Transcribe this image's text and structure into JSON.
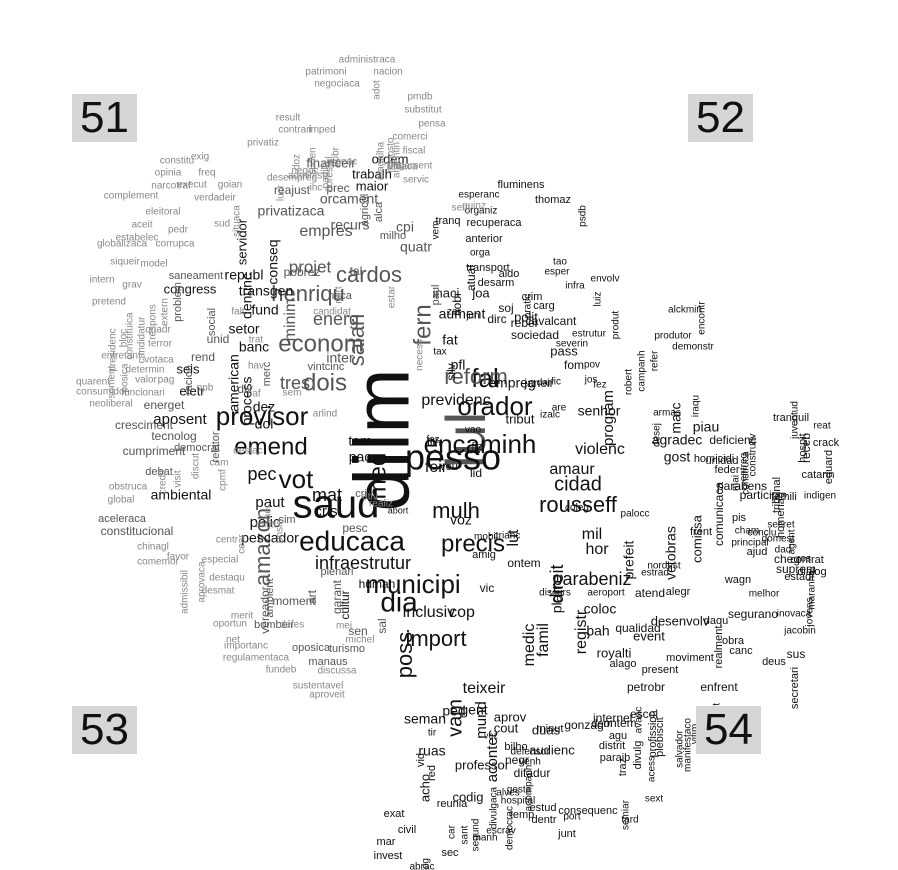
{
  "quadrant_labels": [
    "51",
    "52",
    "53",
    "54"
  ],
  "palette": {
    "dark": "#111111",
    "mid": "#555555",
    "light": "#888888",
    "lighter": "#a8a8a8",
    "badge": "#d6d6d6"
  },
  "words": {
    "big": [
      "dilm",
      "lul",
      "saud",
      "pesso",
      "provisor",
      "educaca",
      "orador",
      "encaminh",
      "fal",
      "municipi",
      "rousseff",
      "precis",
      "emend",
      "mulh",
      "dia",
      "med",
      "vot",
      "econom",
      "dois",
      "henriqu",
      "cardos",
      "reform",
      "cidad",
      "fern",
      "salari",
      "amazon",
      "infraestrutur",
      "poss",
      "import",
      "direit",
      "lut",
      "parabeniz"
    ],
    "medium": [
      "energ",
      "tres",
      "projet",
      "inter",
      "previdenc",
      "empres",
      "minim",
      "privatizaca",
      "orcament",
      "recurs",
      "cpi",
      "quatr",
      "pec",
      "mat",
      "cris",
      "tem",
      "pac",
      "feir",
      "voz",
      "amaur",
      "mil",
      "hor",
      "program",
      "violenc",
      "senhor",
      "agradec",
      "gost",
      "marc",
      "coloc",
      "bah",
      "event",
      "royalti",
      "medic",
      "famil",
      "registr",
      "vam",
      "teixeir",
      "ped",
      "gent",
      "cop",
      "inclusiv",
      "plan",
      "prefeit",
      "vetobras",
      "piau",
      "ambiental",
      "polic",
      "paut",
      "dez",
      "dol",
      "aposent",
      "pescador",
      "empreg",
      "tribut",
      "aument",
      "inaci",
      "transgen",
      "fund",
      "setor",
      "republ",
      "congress",
      "seis",
      "eletr",
      "process",
      "american",
      "banc",
      "conseq",
      "denunc",
      "servidor",
      "maior",
      "trabalh",
      "ordem",
      "acontec",
      "cout",
      "duas",
      "mund",
      "aprov",
      "audienc",
      "codig",
      "professor",
      "ruas",
      "seman",
      "acho",
      "human",
      "cultur",
      "desenvolv",
      "comissa",
      "comunicaca",
      "atend",
      "ontem",
      "internet",
      "escol",
      "petrobr",
      "qualidad",
      "amig",
      "bah"
    ],
    "small": [
      "patrimoni",
      "nacion",
      "administraca",
      "pmdb",
      "negociaca",
      "substitut",
      "result",
      "pensa",
      "contrari",
      "imped",
      "comerci",
      "privatiz",
      "fiscal",
      "pagament",
      "servic",
      "urgenc",
      "financeir",
      "redaca",
      "reajust",
      "prec",
      "constitu",
      "exig",
      "opinia",
      "freq",
      "narcotraf",
      "goian",
      "execut",
      "verdadeir",
      "complement",
      "situaca",
      "eleitoral",
      "sud",
      "aceit",
      "pedr",
      "estabelec",
      "globalizaca",
      "corrupca",
      "siqueir",
      "model",
      "saneament",
      "intern",
      "grav",
      "pretend",
      "problem",
      "social",
      "respons",
      "extern",
      "presidenc",
      "candidatur",
      "constituica",
      "bloc",
      "entretant",
      "determin",
      "quarent",
      "consumidor",
      "neoliberal",
      "soment",
      "posica",
      "valor",
      "pag",
      "funcionari",
      "votaca",
      "racion",
      "terror",
      "quadr",
      "energet",
      "rend",
      "unid",
      "falt",
      "trat",
      "hav",
      "merc",
      "div",
      "sem",
      "caf",
      "ppb",
      "cresciment",
      "tecnolog",
      "cumpriment",
      "democrat",
      "relator",
      "debat",
      "discut",
      "cam",
      "cpmf",
      "destac",
      "obstruca",
      "global",
      "credit",
      "visit",
      "aceleraca",
      "constitucional",
      "chinagl",
      "centr",
      "cear",
      "favor",
      "comemor",
      "especial",
      "admissibil",
      "destaqu",
      "aprovaca",
      "desmat",
      "oportun",
      "net",
      "merit",
      "importanc",
      "regulamentaca",
      "fundeb",
      "sustentavel",
      "aproveit",
      "discussa",
      "manaus",
      "turismo",
      "oposica",
      "bombeir",
      "vereador",
      "ambient",
      "moment",
      "art",
      "garant",
      "defes",
      "sim",
      "militt",
      "ensin",
      "aer",
      "arlind",
      "mei",
      "sen",
      "michel",
      "sal",
      "plenari",
      "pesc",
      "realiz",
      "cri",
      "ativ",
      "abort",
      "vintcinc",
      "pobrez",
      "tal",
      "naca",
      "nort",
      "candidat",
      "estar",
      "necess",
      "paul",
      "zer",
      "jun",
      "fat",
      "pfl",
      "silv",
      "tax",
      "nobr",
      "atual",
      "joa",
      "soj",
      "polit",
      "dirc",
      "sociedad",
      "pass",
      "janeir",
      "fom",
      "pov",
      "jos",
      "fez",
      "dar",
      "fic",
      "are",
      "vao",
      "fiz",
      "lid",
      "faz",
      "filh",
      "vou",
      "izalc",
      "coleg",
      "mobil",
      "crianc",
      "amig",
      "ontem",
      "vic",
      "discurs",
      "aeroport",
      "nordest",
      "estrad",
      "palocc",
      "desej",
      "armas",
      "iraqu",
      "robert",
      "campanh",
      "refer",
      "demonstr",
      "produtor",
      "alckmin",
      "encontr",
      "envolv",
      "infra",
      "luiz",
      "produt",
      "estrutur",
      "severin",
      "cavalcant",
      "rebel",
      "carg",
      "pratic",
      "crim",
      "tao",
      "esper",
      "desarm",
      "aldo",
      "transport",
      "orga",
      "anterior",
      "tranq",
      "recuperaca",
      "organiz",
      "esperanc",
      "fluminens",
      "thomaz",
      "psdb",
      "vem",
      "sent",
      "guinz",
      "milho",
      "alca",
      "agricol",
      "adot",
      "imposto",
      "magalha",
      "argentin",
      "pobr",
      "suden",
      "negoc",
      "ihc",
      "lucr",
      "doz",
      "administr",
      "desempreg",
      "padilh",
      "florestal",
      "homicidi",
      "deficienc",
      "unidad",
      "feder",
      "mai",
      "tranquil",
      "reat",
      "crack",
      "juventud",
      "construtiv",
      "entreg",
      "construca",
      "hospit",
      "receb",
      "eduard",
      "catarin",
      "indigen",
      "parabens",
      "particip",
      "pis",
      "famili",
      "tribunal",
      "homenag",
      "secret",
      "agent",
      "ros",
      "maranha",
      "domest",
      "dad",
      "cham",
      "conclu",
      "frent",
      "cheg",
      "suprem",
      "dialog",
      "principal",
      "estadi",
      "ajud",
      "contrat",
      "jovens",
      "wagn",
      "alegr",
      "melhor",
      "inovaca",
      "segurano",
      "daqu",
      "jacobin",
      "realment",
      "obra",
      "canc",
      "sus",
      "deus",
      "secretari",
      "enfrent",
      "present",
      "moviment",
      "alun",
      "mort",
      "vitim",
      "salvador",
      "manifestaco",
      "plebiscit",
      "profission",
      "divulg",
      "traz",
      "distrit",
      "acess",
      "semiar",
      "consequenc",
      "tard",
      "sext",
      "paraib",
      "avanc",
      "agu",
      "alago",
      "gonzag",
      "minut",
      "ditadur",
      "dem",
      "venh",
      "defensor",
      "bilho",
      "negr",
      "temp",
      "dentr",
      "junt",
      "port",
      "estud",
      "gesta",
      "hospital",
      "alves",
      "acompanh",
      "democrac",
      "divulgaca",
      "escrav",
      "manh",
      "segund",
      "sant",
      "car",
      "reunia",
      "exat",
      "civil",
      "mar",
      "invest",
      "sec",
      "abrac",
      "drog",
      "red",
      "vid",
      "tir",
      "vez"
    ]
  }
}
